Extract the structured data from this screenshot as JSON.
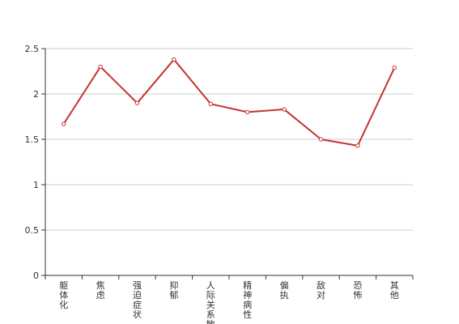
{
  "chart_data": {
    "type": "line",
    "categories": [
      "躯体化",
      "焦虑",
      "强迫症状",
      "抑郁",
      "人际关系敏感",
      "精神病性",
      "偏执",
      "敌对",
      "恐怖",
      "其他"
    ],
    "series": [
      {
        "values": [
          1.67,
          2.3,
          1.9,
          2.38,
          1.89,
          1.8,
          1.83,
          1.5,
          1.43,
          2.29
        ]
      }
    ],
    "ylim": [
      0,
      2.5
    ],
    "yticks": [
      "0",
      "0.5",
      "1",
      "1.5",
      "2",
      "2.5"
    ],
    "grid": true,
    "colors": {
      "line": "#c23531",
      "grid": "#cccccc",
      "axis": "#333333"
    }
  }
}
